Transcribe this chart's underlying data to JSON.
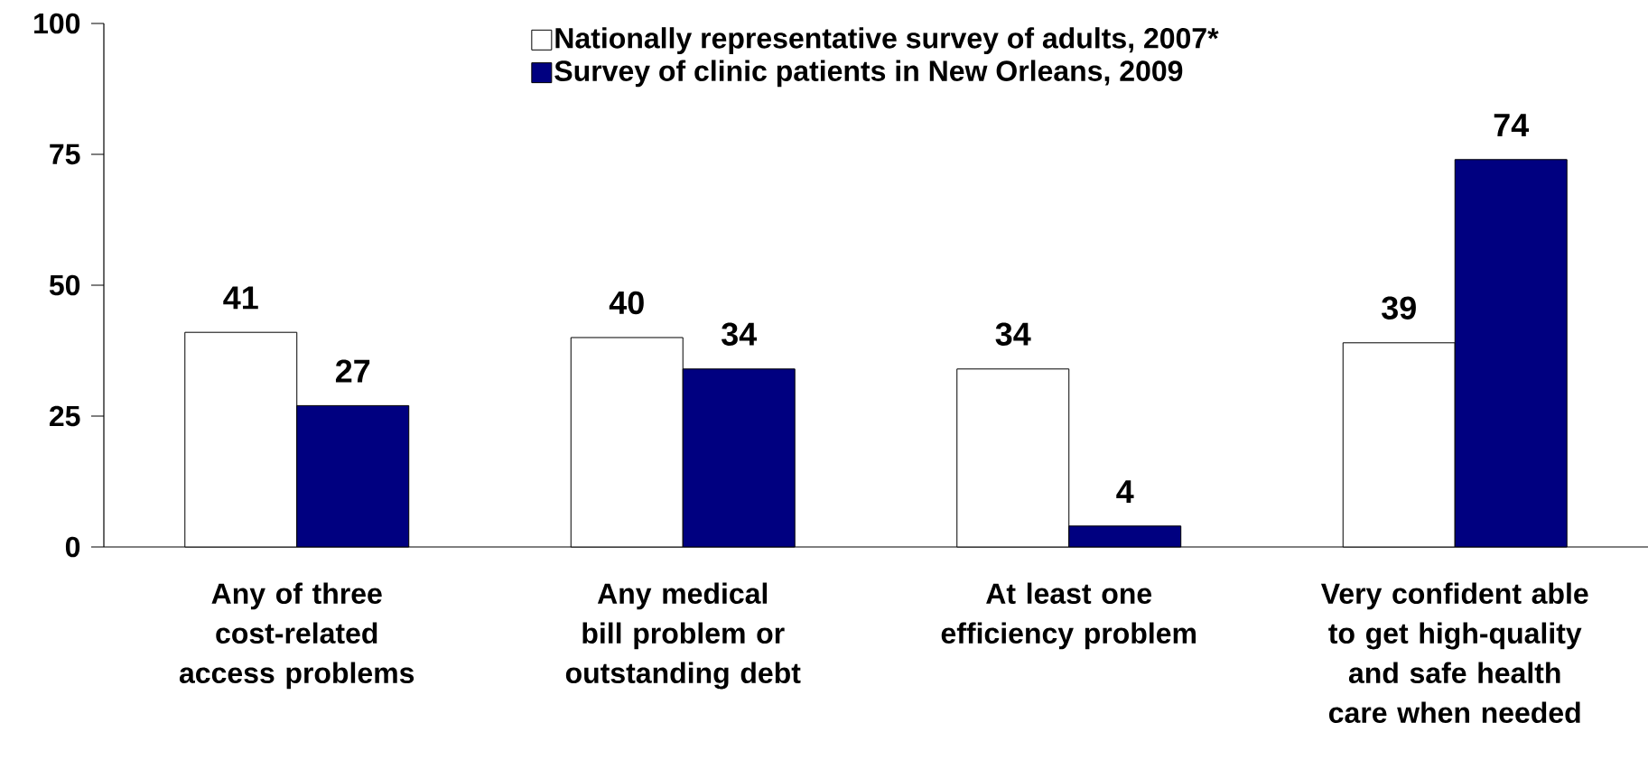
{
  "chart_data": {
    "type": "bar",
    "categories": [
      "Any of three cost-related access problems",
      "Any medical bill problem or outstanding debt",
      "At least one efficiency problem",
      "Very confident able to get high-quality and safe health care when needed"
    ],
    "series": [
      {
        "name": "Nationally representative survey of adults, 2007*",
        "color": "#ffffff",
        "values": [
          41,
          40,
          34,
          39
        ]
      },
      {
        "name": "Survey of clinic patients in New Orleans, 2009",
        "color": "#000080",
        "values": [
          27,
          34,
          4,
          74
        ]
      }
    ],
    "ylim": [
      0,
      100
    ],
    "yticks": [
      0,
      25,
      50,
      75,
      100
    ],
    "data_labels": true,
    "legend": "top",
    "grid": false
  }
}
